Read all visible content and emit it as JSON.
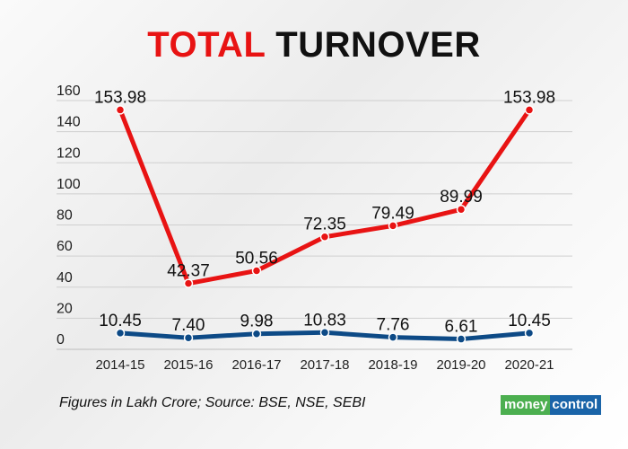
{
  "title": {
    "part1": "TOTAL",
    "part2": "TURNOVER"
  },
  "chart_data": {
    "type": "line",
    "title": "TOTAL TURNOVER",
    "xlabel": "",
    "ylabel": "",
    "ylim": [
      0,
      160
    ],
    "yticks": [
      0,
      20,
      40,
      60,
      80,
      100,
      120,
      140,
      160
    ],
    "grid": true,
    "categories": [
      "2014-15",
      "2015-16",
      "2016-17",
      "2017-18",
      "2018-19",
      "2019-20",
      "2020-21"
    ],
    "series": [
      {
        "name": "red-series",
        "color": "#e81313",
        "values": [
          153.98,
          42.37,
          50.56,
          72.35,
          79.49,
          89.99,
          153.98
        ],
        "labels": [
          "153.98",
          "42.37",
          "50.56",
          "72.35",
          "79.49",
          "89.99",
          "153.98"
        ]
      },
      {
        "name": "blue-series",
        "color": "#0d4a86",
        "values": [
          10.45,
          7.4,
          9.98,
          10.83,
          7.76,
          6.61,
          10.45
        ],
        "labels": [
          "10.45",
          "7.40",
          "9.98",
          "10.83",
          "7.76",
          "6.61",
          "10.45"
        ]
      }
    ]
  },
  "footer": {
    "note": "Figures in Lakh Crore;  Source: BSE, NSE, SEBI"
  },
  "logo": {
    "part1": "money",
    "part2": "control"
  }
}
